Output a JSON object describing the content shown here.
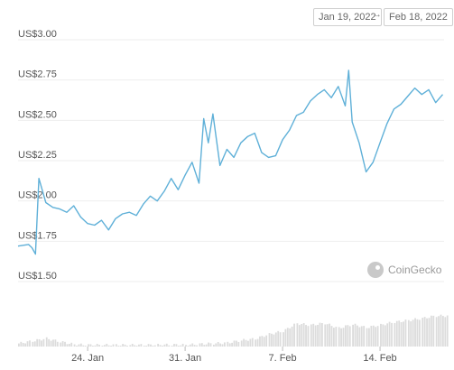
{
  "date_range": {
    "from": "Jan 19, 2022",
    "arrow": "→",
    "to": "Feb 18, 2022"
  },
  "watermark": "CoinGecko",
  "colors": {
    "line": "#5fb0d8",
    "grid": "#eeeeee",
    "volume": "#dcdcdc"
  },
  "chart_data": {
    "type": "line",
    "title": "",
    "xlabel": "",
    "ylabel": "",
    "yticks": [
      "US$1.50",
      "US$1.75",
      "US$2.00",
      "US$2.25",
      "US$2.50",
      "US$2.75",
      "US$3.00"
    ],
    "ylim": [
      1.5,
      3.0
    ],
    "xticks": [
      "24. Jan",
      "31. Jan",
      "7. Feb",
      "14. Feb"
    ],
    "xlim": [
      "2022-01-19",
      "2022-02-18"
    ],
    "grid": true,
    "series": [
      {
        "points": [
          [
            "2022-01-19",
            1.72
          ],
          [
            "2022-01-19T18:00",
            1.73
          ],
          [
            "2022-01-20",
            1.71
          ],
          [
            "2022-01-20T06:00",
            1.67
          ],
          [
            "2022-01-20T12:00",
            2.14
          ],
          [
            "2022-01-21",
            1.99
          ],
          [
            "2022-01-21T12:00",
            1.96
          ],
          [
            "2022-01-22",
            1.95
          ],
          [
            "2022-01-22T12:00",
            1.93
          ],
          [
            "2022-01-23",
            1.97
          ],
          [
            "2022-01-23T12:00",
            1.9
          ],
          [
            "2022-01-24",
            1.86
          ],
          [
            "2022-01-24T12:00",
            1.85
          ],
          [
            "2022-01-25",
            1.88
          ],
          [
            "2022-01-25T12:00",
            1.82
          ],
          [
            "2022-01-26",
            1.89
          ],
          [
            "2022-01-26T12:00",
            1.92
          ],
          [
            "2022-01-27",
            1.93
          ],
          [
            "2022-01-27T12:00",
            1.91
          ],
          [
            "2022-01-28",
            1.98
          ],
          [
            "2022-01-28T12:00",
            2.03
          ],
          [
            "2022-01-29",
            2.0
          ],
          [
            "2022-01-29T12:00",
            2.06
          ],
          [
            "2022-01-30",
            2.14
          ],
          [
            "2022-01-30T12:00",
            2.07
          ],
          [
            "2022-01-31",
            2.16
          ],
          [
            "2022-01-31T12:00",
            2.24
          ],
          [
            "2022-02-01",
            2.11
          ],
          [
            "2022-02-01T08:00",
            2.51
          ],
          [
            "2022-02-01T16:00",
            2.36
          ],
          [
            "2022-02-02",
            2.54
          ],
          [
            "2022-02-02T12:00",
            2.22
          ],
          [
            "2022-02-03",
            2.32
          ],
          [
            "2022-02-03T12:00",
            2.27
          ],
          [
            "2022-02-04",
            2.36
          ],
          [
            "2022-02-04T12:00",
            2.4
          ],
          [
            "2022-02-05",
            2.42
          ],
          [
            "2022-02-05T12:00",
            2.3
          ],
          [
            "2022-02-06",
            2.27
          ],
          [
            "2022-02-06T12:00",
            2.28
          ],
          [
            "2022-02-07",
            2.38
          ],
          [
            "2022-02-07T12:00",
            2.44
          ],
          [
            "2022-02-08",
            2.53
          ],
          [
            "2022-02-08T12:00",
            2.55
          ],
          [
            "2022-02-09",
            2.62
          ],
          [
            "2022-02-09T12:00",
            2.66
          ],
          [
            "2022-02-10",
            2.69
          ],
          [
            "2022-02-10T12:00",
            2.64
          ],
          [
            "2022-02-11",
            2.71
          ],
          [
            "2022-02-11T12:00",
            2.59
          ],
          [
            "2022-02-11T18:00",
            2.81
          ],
          [
            "2022-02-12",
            2.49
          ],
          [
            "2022-02-12T12:00",
            2.36
          ],
          [
            "2022-02-13",
            2.18
          ],
          [
            "2022-02-13T12:00",
            2.24
          ],
          [
            "2022-02-14",
            2.36
          ],
          [
            "2022-02-14T12:00",
            2.48
          ],
          [
            "2022-02-15",
            2.57
          ],
          [
            "2022-02-15T12:00",
            2.6
          ],
          [
            "2022-02-16",
            2.65
          ],
          [
            "2022-02-16T12:00",
            2.7
          ],
          [
            "2022-02-17",
            2.66
          ],
          [
            "2022-02-17T12:00",
            2.69
          ],
          [
            "2022-02-18",
            2.61
          ],
          [
            "2022-02-18T12:00",
            2.66
          ]
        ]
      }
    ],
    "volume": [
      [
        "2022-01-19",
        0.1
      ],
      [
        "2022-01-20",
        0.18
      ],
      [
        "2022-01-21",
        0.26
      ],
      [
        "2022-01-22",
        0.16
      ],
      [
        "2022-01-23",
        0.07
      ],
      [
        "2022-01-24",
        0.05
      ],
      [
        "2022-01-25",
        0.05
      ],
      [
        "2022-01-26",
        0.05
      ],
      [
        "2022-01-27",
        0.05
      ],
      [
        "2022-01-28",
        0.05
      ],
      [
        "2022-01-29",
        0.05
      ],
      [
        "2022-01-30",
        0.06
      ],
      [
        "2022-01-31",
        0.05
      ],
      [
        "2022-02-01",
        0.08
      ],
      [
        "2022-02-02",
        0.1
      ],
      [
        "2022-02-03",
        0.12
      ],
      [
        "2022-02-04",
        0.2
      ],
      [
        "2022-02-05",
        0.25
      ],
      [
        "2022-02-06",
        0.4
      ],
      [
        "2022-02-07",
        0.5
      ],
      [
        "2022-02-08",
        0.75
      ],
      [
        "2022-02-09",
        0.7
      ],
      [
        "2022-02-10",
        0.76
      ],
      [
        "2022-02-11",
        0.6
      ],
      [
        "2022-02-12",
        0.72
      ],
      [
        "2022-02-13",
        0.62
      ],
      [
        "2022-02-14",
        0.7
      ],
      [
        "2022-02-15",
        0.8
      ],
      [
        "2022-02-16",
        0.85
      ],
      [
        "2022-02-17",
        0.92
      ],
      [
        "2022-02-18",
        1.0
      ]
    ]
  }
}
